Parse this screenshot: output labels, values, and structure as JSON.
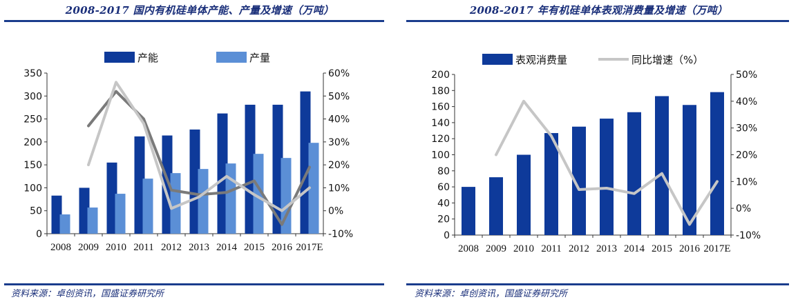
{
  "left": {
    "title": "2008-2017 国内有机硅单体产能、产量及增速（万吨）",
    "source": "资料来源：卓创资讯，国盛证券研究所",
    "colors": {
      "capacity": "#0e3a9a",
      "production": "#5b8fd6",
      "capacity_growth": "#7a7a7a",
      "production_growth": "#c6c6c6"
    }
  },
  "right": {
    "title": "2008-2017 年有机硅单体表观消费量及增速（万吨）",
    "source": "资料来源：卓创资讯，国盛证券研究所",
    "colors": {
      "consumption": "#0e3a9a",
      "growth": "#c6c6c6"
    }
  },
  "chart_data": [
    {
      "type": "bar",
      "title": "2008-2017 国内有机硅单体产能、产量及增速（万吨）",
      "categories": [
        "2008",
        "2009",
        "2010",
        "2011",
        "2012",
        "2013",
        "2014",
        "2015",
        "2016",
        "2017E"
      ],
      "series": [
        {
          "name": "产能",
          "type": "bar",
          "axis": "left",
          "values": [
            83,
            100,
            155,
            212,
            214,
            227,
            262,
            281,
            281,
            310
          ]
        },
        {
          "name": "产量",
          "type": "bar",
          "axis": "left",
          "values": [
            42,
            57,
            87,
            120,
            132,
            141,
            153,
            174,
            165,
            198
          ]
        },
        {
          "type": "line",
          "axis": "right",
          "values": [
            null,
            37,
            52,
            40,
            9,
            7,
            8,
            13,
            -6,
            19
          ]
        },
        {
          "type": "line",
          "axis": "right",
          "values": [
            null,
            20,
            56,
            38,
            1,
            6,
            15,
            7,
            0,
            10
          ]
        }
      ],
      "left_ticks": [
        "0",
        "50",
        "100",
        "150",
        "200",
        "250",
        "300",
        "350"
      ],
      "right_ticks": [
        "-10%",
        "0%",
        "10%",
        "20%",
        "30%",
        "40%",
        "50%",
        "60%"
      ],
      "ylim_left": [
        0,
        350
      ],
      "ylim_right": [
        -10,
        60
      ],
      "legend_position": "top",
      "grid": false
    },
    {
      "type": "bar",
      "title": "2008-2017 年有机硅单体表观消费量及增速（万吨）",
      "categories": [
        "2008",
        "2009",
        "2010",
        "2011",
        "2012",
        "2013",
        "2014",
        "2015",
        "2016",
        "2017E"
      ],
      "series": [
        {
          "name": "表观消费量",
          "type": "bar",
          "axis": "left",
          "values": [
            60,
            72,
            100,
            127,
            135,
            145,
            153,
            173,
            162,
            178
          ]
        },
        {
          "name": "同比增速（%）",
          "type": "line",
          "axis": "right",
          "values": [
            null,
            20,
            40,
            27,
            7,
            7.5,
            5.5,
            13,
            -6,
            10
          ]
        }
      ],
      "left_ticks": [
        "0",
        "20",
        "40",
        "60",
        "80",
        "100",
        "120",
        "140",
        "160",
        "180",
        "200"
      ],
      "right_ticks": [
        "-10%",
        "0%",
        "10%",
        "20%",
        "30%",
        "40%",
        "50%"
      ],
      "ylim_left": [
        0,
        200
      ],
      "ylim_right": [
        -10,
        50
      ],
      "legend_position": "top",
      "grid": false
    }
  ]
}
